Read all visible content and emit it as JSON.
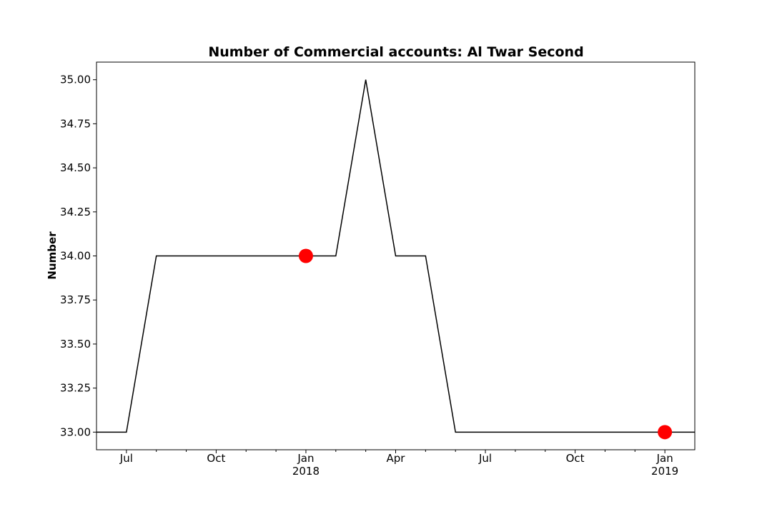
{
  "chart_data": {
    "type": "line",
    "title": "Number of Commercial accounts: Al Twar Second",
    "xlabel": "",
    "ylabel": "Number",
    "x": [
      "2017-06",
      "2017-07",
      "2017-08",
      "2017-09",
      "2017-10",
      "2017-11",
      "2017-12",
      "2018-01",
      "2018-02",
      "2018-03",
      "2018-04",
      "2018-05",
      "2018-06",
      "2018-07",
      "2018-08",
      "2018-09",
      "2018-10",
      "2018-11",
      "2018-12",
      "2019-01",
      "2019-02"
    ],
    "series": [
      {
        "values": [
          33,
          33,
          34,
          34,
          34,
          34,
          34,
          34,
          34,
          35,
          34,
          34,
          33,
          33,
          33,
          33,
          33,
          33,
          33,
          33,
          33
        ],
        "color": "#000000"
      }
    ],
    "highlight_points": [
      {
        "x": "2018-01",
        "y": 34,
        "color": "#ff0000"
      },
      {
        "x": "2019-01",
        "y": 33,
        "color": "#ff0000"
      }
    ],
    "ylim": [
      32.9,
      35.1
    ],
    "xlim": [
      "2017-06",
      "2019-02"
    ],
    "yticks": [
      "33.00",
      "33.25",
      "33.50",
      "33.75",
      "34.00",
      "34.25",
      "34.50",
      "34.75",
      "35.00"
    ],
    "xticks": [
      {
        "x": "2017-07",
        "label": "Jul",
        "sublabel": ""
      },
      {
        "x": "2017-10",
        "label": "Oct",
        "sublabel": ""
      },
      {
        "x": "2018-01",
        "label": "Jan",
        "sublabel": "2018"
      },
      {
        "x": "2018-04",
        "label": "Apr",
        "sublabel": ""
      },
      {
        "x": "2018-07",
        "label": "Jul",
        "sublabel": ""
      },
      {
        "x": "2018-10",
        "label": "Oct",
        "sublabel": ""
      },
      {
        "x": "2019-01",
        "label": "Jan",
        "sublabel": "2019"
      }
    ],
    "minor_xticks": [
      "2017-08",
      "2017-09",
      "2017-11",
      "2017-12",
      "2018-02",
      "2018-03",
      "2018-05",
      "2018-06",
      "2018-08",
      "2018-09",
      "2018-11",
      "2018-12"
    ],
    "grid": false,
    "legend": "none"
  }
}
